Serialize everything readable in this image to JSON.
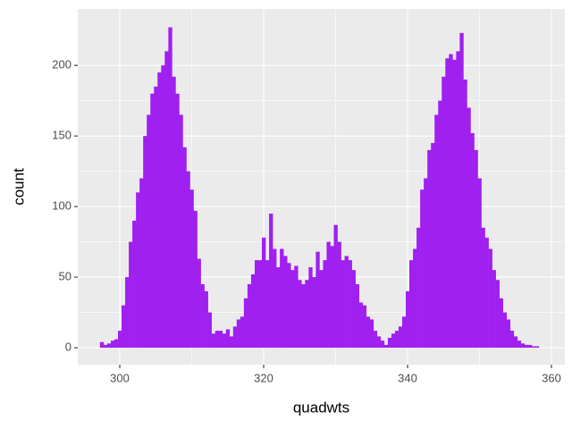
{
  "chart_data": {
    "type": "histogram",
    "x_label": "quadwts",
    "y_label": "count",
    "color": "#a020f0",
    "bins": [
      297.25,
      297.75,
      298.25,
      298.75,
      299.25,
      299.75,
      300.25,
      300.75,
      301.25,
      301.75,
      302.25,
      302.75,
      303.25,
      303.75,
      304.25,
      304.75,
      305.25,
      305.75,
      306.25,
      306.75,
      307.25,
      307.75,
      308.25,
      308.75,
      309.25,
      309.75,
      310.25,
      310.75,
      311.25,
      311.75,
      312.25,
      312.75,
      313.25,
      313.75,
      314.25,
      314.75,
      315.25,
      315.75,
      316.25,
      316.75,
      317.25,
      317.75,
      318.25,
      318.75,
      319.25,
      319.75,
      320.25,
      320.75,
      321.25,
      321.75,
      322.25,
      322.75,
      323.25,
      323.75,
      324.25,
      324.75,
      325.25,
      325.75,
      326.25,
      326.75,
      327.25,
      327.75,
      328.25,
      328.75,
      329.25,
      329.75,
      330.25,
      330.75,
      331.25,
      331.75,
      332.25,
      332.75,
      333.25,
      333.75,
      334.25,
      334.75,
      335.25,
      335.75,
      336.25,
      336.75,
      337.25,
      337.75,
      338.25,
      338.75,
      339.25,
      339.75,
      340.25,
      340.75,
      341.25,
      341.75,
      342.25,
      342.75,
      343.25,
      343.75,
      344.25,
      344.75,
      345.25,
      345.75,
      346.25,
      346.75,
      347.25,
      347.75,
      348.25,
      348.75,
      349.25,
      349.75,
      350.25,
      350.75,
      351.25,
      351.75,
      352.25,
      352.75,
      353.25,
      353.75,
      354.25,
      354.75,
      355.25,
      355.75,
      356.25,
      356.75,
      357.25,
      357.75,
      358.25
    ],
    "values": [
      4,
      2,
      3,
      5,
      6,
      12,
      30,
      50,
      75,
      90,
      110,
      120,
      150,
      165,
      180,
      185,
      195,
      200,
      210,
      227,
      192,
      180,
      165,
      142,
      125,
      112,
      97,
      63,
      45,
      40,
      25,
      10,
      12,
      12,
      10,
      13,
      8,
      15,
      20,
      22,
      35,
      45,
      52,
      62,
      62,
      78,
      62,
      95,
      70,
      57,
      70,
      65,
      60,
      55,
      58,
      48,
      45,
      48,
      57,
      50,
      68,
      55,
      62,
      75,
      72,
      87,
      75,
      62,
      65,
      62,
      55,
      45,
      32,
      30,
      22,
      20,
      12,
      8,
      5,
      2,
      7,
      10,
      12,
      15,
      22,
      40,
      62,
      70,
      85,
      112,
      120,
      140,
      145,
      165,
      175,
      192,
      205,
      208,
      204,
      210,
      223,
      190,
      170,
      152,
      140,
      120,
      85,
      78,
      70,
      55,
      48,
      35,
      25,
      20,
      12,
      8,
      5,
      3,
      2,
      2,
      1,
      1
    ],
    "xlim": [
      294.16,
      361.86
    ],
    "ylim": [
      -12,
      240
    ],
    "xticks": [
      300,
      320,
      340,
      360
    ],
    "yticks": [
      0,
      50,
      100,
      150,
      200
    ],
    "grid": true
  }
}
